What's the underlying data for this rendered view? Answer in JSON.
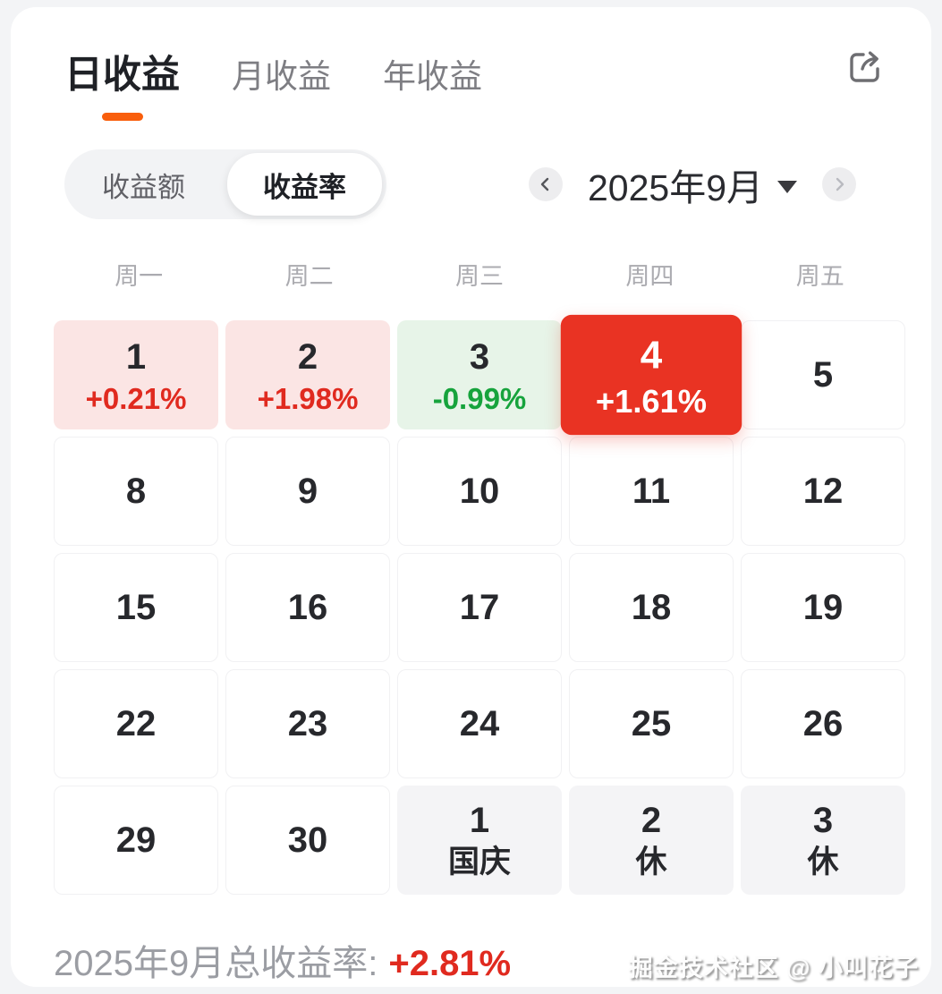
{
  "tabs": [
    {
      "label": "日收益",
      "active": true
    },
    {
      "label": "月收益",
      "active": false
    },
    {
      "label": "年收益",
      "active": false
    }
  ],
  "header_icons": {
    "share": "share-icon"
  },
  "toggle": {
    "options": [
      {
        "label": "收益额",
        "selected": false
      },
      {
        "label": "收益率",
        "selected": true
      }
    ]
  },
  "month_nav": {
    "label": "2025年9月",
    "prev_icon": "chevron-left-icon",
    "next_icon": "chevron-right-icon",
    "dropdown_icon": "caret-down-icon"
  },
  "weekdays": [
    "周一",
    "周二",
    "周三",
    "周四",
    "周五"
  ],
  "calendar": {
    "cells": [
      {
        "day": "1",
        "pct": "+0.21%",
        "type": "gain"
      },
      {
        "day": "2",
        "pct": "+1.98%",
        "type": "gain"
      },
      {
        "day": "3",
        "pct": "-0.99%",
        "type": "loss"
      },
      {
        "day": "4",
        "pct": "+1.61%",
        "type": "today"
      },
      {
        "day": "5",
        "type": "plain"
      },
      {
        "day": "8",
        "type": "plain"
      },
      {
        "day": "9",
        "type": "plain"
      },
      {
        "day": "10",
        "type": "plain"
      },
      {
        "day": "11",
        "type": "plain"
      },
      {
        "day": "12",
        "type": "plain"
      },
      {
        "day": "15",
        "type": "plain"
      },
      {
        "day": "16",
        "type": "plain"
      },
      {
        "day": "17",
        "type": "plain"
      },
      {
        "day": "18",
        "type": "plain"
      },
      {
        "day": "19",
        "type": "plain"
      },
      {
        "day": "22",
        "type": "plain"
      },
      {
        "day": "23",
        "type": "plain"
      },
      {
        "day": "24",
        "type": "plain"
      },
      {
        "day": "25",
        "type": "plain"
      },
      {
        "day": "26",
        "type": "plain"
      },
      {
        "day": "29",
        "type": "plain"
      },
      {
        "day": "30",
        "type": "plain"
      },
      {
        "day": "1",
        "label": "国庆",
        "type": "holiday"
      },
      {
        "day": "2",
        "label": "休",
        "type": "holiday"
      },
      {
        "day": "3",
        "label": "休",
        "type": "holiday"
      }
    ]
  },
  "summary": {
    "label": "2025年9月总收益率:",
    "value": "+2.81%"
  },
  "watermark": "掘金技术社区 @ 小叫花子",
  "colors": {
    "accent_orange": "#f95e0c",
    "today_red": "#e93323",
    "gain_text_red": "#e02a1f",
    "gain_bg_pink": "#fbe5e4",
    "loss_text_green": "#16a33c",
    "loss_bg_green": "#e7f4e8",
    "holiday_bg_gray": "#f4f4f6"
  }
}
